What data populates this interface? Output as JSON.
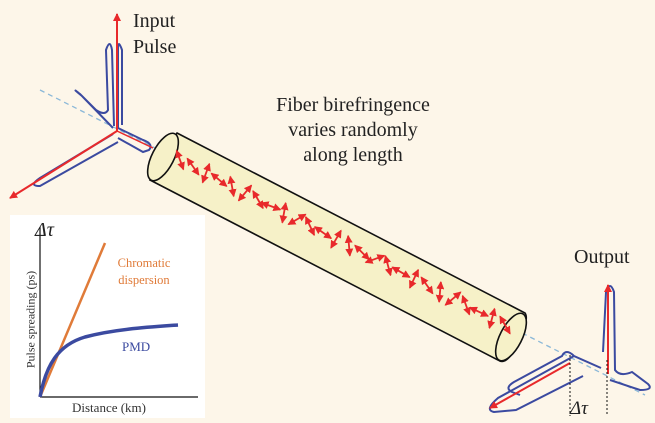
{
  "labels": {
    "input": "Input\nPulse",
    "fiber_caption": "Fiber birefringence\nvaries randomly\nalong length",
    "output": "Output",
    "output_delay": "Δτ"
  },
  "inset_chart": {
    "tau_label": "Δτ",
    "y_axis_label": "Pulse spreading (ps)",
    "x_axis_label": "Distance (km)",
    "chromatic_label": "Chromatic\ndispersion",
    "pmd_label": "PMD"
  },
  "colors": {
    "background": "#fdf6e9",
    "pulse_outline": "#3b4aa0",
    "polarization_arrow": "#e8292b",
    "fiber_fill": "#f6f1c8",
    "axis_dashed": "#8bb8d8",
    "chromatic_curve": "#e07b39",
    "pmd_curve": "#3b4aa0"
  },
  "icons": {
    "polarization_arrows": "red-double-arrow",
    "input_pulse": "two-pulse-polarization-shape",
    "output_pulse": "split-pulse-shape"
  }
}
